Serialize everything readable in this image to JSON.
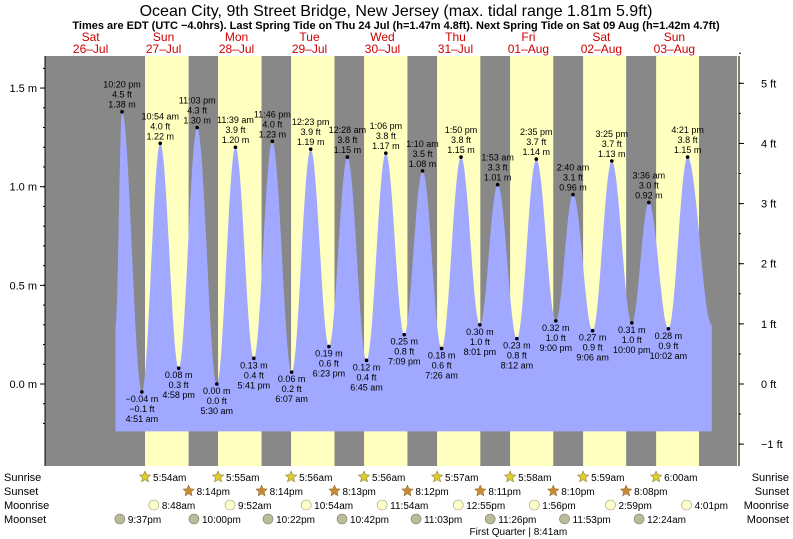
{
  "chart_data": {
    "type": "area",
    "title": "Ocean City, 9th Street Bridge, New Jersey (max. tidal range 1.81m 5.9ft)",
    "subtitle": "Times are EDT (UTC −4.0hrs). Last Spring Tide on Thu 24 Jul (h=1.47m 4.8ft). Next Spring Tide on Sat 09 Aug (h=1.42m 4.7ft)",
    "days": [
      {
        "dow": "Sat",
        "date": "26–Jul"
      },
      {
        "dow": "Sun",
        "date": "27–Jul"
      },
      {
        "dow": "Mon",
        "date": "28–Jul"
      },
      {
        "dow": "Tue",
        "date": "29–Jul"
      },
      {
        "dow": "Wed",
        "date": "30–Jul"
      },
      {
        "dow": "Thu",
        "date": "31–Jul"
      },
      {
        "dow": "Fri",
        "date": "01–Aug"
      },
      {
        "dow": "Sat",
        "date": "02–Aug"
      },
      {
        "dow": "Sun",
        "date": "03–Aug"
      }
    ],
    "axis_left": {
      "unit": "m",
      "ticks": [
        {
          "v": 0.0,
          "label": "0.0 m"
        },
        {
          "v": 0.5,
          "label": "0.5 m"
        },
        {
          "v": 1.0,
          "label": "1.0 m"
        },
        {
          "v": 1.5,
          "label": "1.5 m"
        }
      ]
    },
    "axis_right": {
      "unit": "ft",
      "ticks": [
        {
          "v": -1,
          "label": "−1 ft"
        },
        {
          "v": 0,
          "label": "0 ft"
        },
        {
          "v": 1,
          "label": "1 ft"
        },
        {
          "v": 2,
          "label": "2 ft"
        },
        {
          "v": 3,
          "label": "3 ft"
        },
        {
          "v": 4,
          "label": "4 ft"
        },
        {
          "v": 5,
          "label": "5 ft"
        }
      ]
    },
    "ylim_m": [
      -0.33,
      1.75
    ],
    "x_range_hours": [
      -3,
      224.6
    ],
    "tides": [
      {
        "t": 22.333,
        "m": 1.38,
        "time": "10:20 pm",
        "ft": "4.5 ft",
        "mlabel": "1.38 m",
        "type": "high"
      },
      {
        "t": 28.85,
        "m": -0.04,
        "time": "4:51 am",
        "ft": "−0.1 ft",
        "mlabel": "−0.04 m",
        "type": "low"
      },
      {
        "t": 34.9,
        "m": 1.22,
        "time": "10:54 am",
        "ft": "4.0 ft",
        "mlabel": "1.22 m",
        "type": "high"
      },
      {
        "t": 40.967,
        "m": 0.08,
        "time": "4:58 pm",
        "ft": "0.3 ft",
        "mlabel": "0.08 m",
        "type": "low"
      },
      {
        "t": 47.05,
        "m": 1.3,
        "time": "11:03 pm",
        "ft": "4.3 ft",
        "mlabel": "1.30 m",
        "type": "high"
      },
      {
        "t": 53.5,
        "m": 0.0,
        "time": "5:30 am",
        "ft": "0.0 ft",
        "mlabel": "0.00 m",
        "type": "low"
      },
      {
        "t": 59.65,
        "m": 1.2,
        "time": "11:39 am",
        "ft": "3.9 ft",
        "mlabel": "1.20 m",
        "type": "high"
      },
      {
        "t": 65.683,
        "m": 0.13,
        "time": "5:41 pm",
        "ft": "0.4 ft",
        "mlabel": "0.13 m",
        "type": "low"
      },
      {
        "t": 71.767,
        "m": 1.23,
        "time": "11:46 pm",
        "ft": "4.0 ft",
        "mlabel": "1.23 m",
        "type": "high"
      },
      {
        "t": 78.117,
        "m": 0.06,
        "time": "6:07 am",
        "ft": "0.2 ft",
        "mlabel": "0.06 m",
        "type": "low"
      },
      {
        "t": 84.383,
        "m": 1.19,
        "time": "12:23 pm",
        "ft": "3.9 ft",
        "mlabel": "1.19 m",
        "type": "high"
      },
      {
        "t": 90.383,
        "m": 0.19,
        "time": "6:23 pm",
        "ft": "0.6 ft",
        "mlabel": "0.19 m",
        "type": "low"
      },
      {
        "t": 96.467,
        "m": 1.15,
        "time": "12:28 am",
        "ft": "3.8 ft",
        "mlabel": "1.15 m",
        "type": "high"
      },
      {
        "t": 102.75,
        "m": 0.12,
        "time": "6:45 am",
        "ft": "0.4 ft",
        "mlabel": "0.12 m",
        "type": "low"
      },
      {
        "t": 109.1,
        "m": 1.17,
        "time": "1:06 pm",
        "ft": "3.8 ft",
        "mlabel": "1.17 m",
        "type": "high"
      },
      {
        "t": 115.15,
        "m": 0.25,
        "time": "7:09 pm",
        "ft": "0.8 ft",
        "mlabel": "0.25 m",
        "type": "low"
      },
      {
        "t": 121.167,
        "m": 1.08,
        "time": "1:10 am",
        "ft": "3.5 ft",
        "mlabel": "1.08 m",
        "type": "high"
      },
      {
        "t": 127.433,
        "m": 0.18,
        "time": "7:26 am",
        "ft": "0.6 ft",
        "mlabel": "0.18 m",
        "type": "low"
      },
      {
        "t": 133.833,
        "m": 1.15,
        "time": "1:50 pm",
        "ft": "3.8 ft",
        "mlabel": "1.15 m",
        "type": "high"
      },
      {
        "t": 140.017,
        "m": 0.3,
        "time": "8:01 pm",
        "ft": "1.0 ft",
        "mlabel": "0.30 m",
        "type": "low"
      },
      {
        "t": 145.883,
        "m": 1.01,
        "time": "1:53 am",
        "ft": "3.3 ft",
        "mlabel": "1.01 m",
        "type": "high"
      },
      {
        "t": 152.2,
        "m": 0.23,
        "time": "8:12 am",
        "ft": "0.8 ft",
        "mlabel": "0.23 m",
        "type": "low"
      },
      {
        "t": 158.583,
        "m": 1.14,
        "time": "2:35 pm",
        "ft": "3.7 ft",
        "mlabel": "1.14 m",
        "type": "high"
      },
      {
        "t": 165.0,
        "m": 0.32,
        "time": "9:00 pm",
        "ft": "1.0 ft",
        "mlabel": "0.32 m",
        "type": "low"
      },
      {
        "t": 170.667,
        "m": 0.96,
        "time": "2:40 am",
        "ft": "3.1 ft",
        "mlabel": "0.96 m",
        "type": "high"
      },
      {
        "t": 177.1,
        "m": 0.27,
        "time": "9:06 am",
        "ft": "0.9 ft",
        "mlabel": "0.27 m",
        "type": "low"
      },
      {
        "t": 183.417,
        "m": 1.13,
        "time": "3:25 pm",
        "ft": "3.7 ft",
        "mlabel": "1.13 m",
        "type": "high"
      },
      {
        "t": 190.0,
        "m": 0.31,
        "time": "10:00 pm",
        "ft": "1.0 ft",
        "mlabel": "0.31 m",
        "type": "low"
      },
      {
        "t": 195.6,
        "m": 0.92,
        "time": "3:36 am",
        "ft": "3.0 ft",
        "mlabel": "0.92 m",
        "type": "high"
      },
      {
        "t": 202.033,
        "m": 0.28,
        "time": "10:02 am",
        "ft": "0.9 ft",
        "mlabel": "0.28 m",
        "type": "low"
      },
      {
        "t": 208.35,
        "m": 1.15,
        "time": "4:21 pm",
        "ft": "3.8 ft",
        "mlabel": "1.15 m",
        "type": "high"
      }
    ],
    "curve_start": {
      "t": 20.2,
      "m": 0.3
    },
    "curve_end": {
      "t": 216.3,
      "m": 0.3
    },
    "daylight": [
      {
        "rise": 29.9,
        "set": 44.233
      },
      {
        "rise": 53.917,
        "set": 68.233
      },
      {
        "rise": 77.933,
        "set": 92.217
      },
      {
        "rise": 101.933,
        "set": 116.2
      },
      {
        "rise": 125.95,
        "set": 140.183
      },
      {
        "rise": 149.967,
        "set": 164.167
      },
      {
        "rise": 173.983,
        "set": 188.133
      },
      {
        "rise": 198.0,
        "set": 212.1
      }
    ],
    "rows": {
      "sunrise_label": "Sunrise",
      "sunset_label": "Sunset",
      "moonrise_label": "Moonrise",
      "moonset_label": "Moonset",
      "sunrise": [
        {
          "t": 29.9,
          "label": "5:54am"
        },
        {
          "t": 53.917,
          "label": "5:55am"
        },
        {
          "t": 77.933,
          "label": "5:56am"
        },
        {
          "t": 101.933,
          "label": "5:56am"
        },
        {
          "t": 125.95,
          "label": "5:57am"
        },
        {
          "t": 149.967,
          "label": "5:58am"
        },
        {
          "t": 173.983,
          "label": "5:59am"
        },
        {
          "t": 198.0,
          "label": "6:00am"
        }
      ],
      "sunset": [
        {
          "t": 44.233,
          "label": "8:14pm"
        },
        {
          "t": 68.233,
          "label": "8:14pm"
        },
        {
          "t": 92.217,
          "label": "8:13pm"
        },
        {
          "t": 116.2,
          "label": "8:12pm"
        },
        {
          "t": 140.183,
          "label": "8:11pm"
        },
        {
          "t": 164.167,
          "label": "8:10pm"
        },
        {
          "t": 188.133,
          "label": "8:08pm"
        }
      ],
      "moonrise": [
        {
          "t": 32.8,
          "label": "8:48am"
        },
        {
          "t": 57.867,
          "label": "9:52am"
        },
        {
          "t": 82.9,
          "label": "10:54am"
        },
        {
          "t": 107.9,
          "label": "11:54am"
        },
        {
          "t": 132.917,
          "label": "12:55pm"
        },
        {
          "t": 157.933,
          "label": "1:56pm"
        },
        {
          "t": 182.983,
          "label": "2:59pm"
        },
        {
          "t": 208.017,
          "label": "4:01pm"
        }
      ],
      "moonset": [
        {
          "t": 21.617,
          "label": "9:37pm"
        },
        {
          "t": 46.0,
          "label": "10:00pm"
        },
        {
          "t": 70.367,
          "label": "10:22pm"
        },
        {
          "t": 94.7,
          "label": "10:42pm"
        },
        {
          "t": 119.05,
          "label": "11:03pm"
        },
        {
          "t": 143.433,
          "label": "11:26pm"
        },
        {
          "t": 167.883,
          "label": "11:53pm"
        },
        {
          "t": 192.4,
          "label": "12:24am"
        }
      ],
      "moon_phase": "First Quarter | 8:41am",
      "moon_phase_t": 152.683
    }
  },
  "colors": {
    "night": "#888888",
    "day": "#ffffc0",
    "water": "#a0a8ff",
    "day_label": "#cc0000",
    "sun_star": "#ddcc33",
    "sunset_star": "#cc8833",
    "moonrise_disc": "#ffffcc",
    "moonset_disc": "#bbbb99"
  }
}
